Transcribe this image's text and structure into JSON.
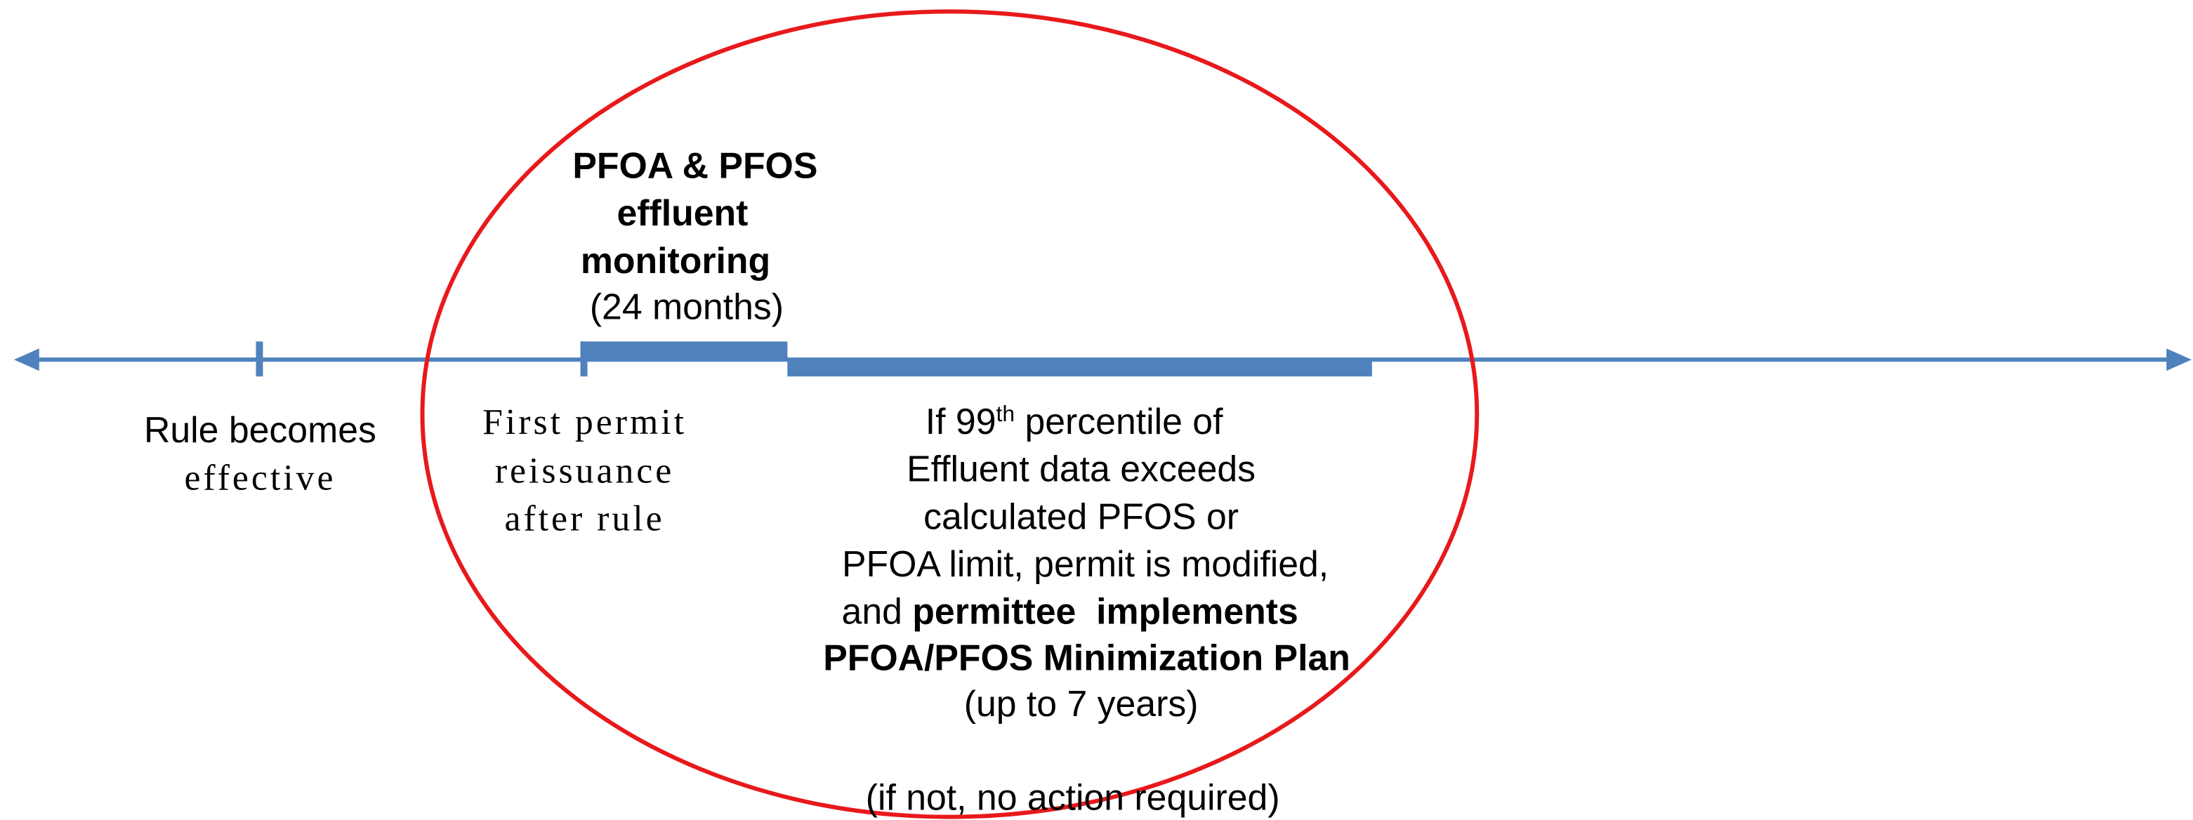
{
  "events": [
    {
      "label_lines": [
        "Rule becomes",
        "effective"
      ]
    },
    {
      "label_lines": [
        "First permit",
        "reissuance",
        "after rule"
      ]
    }
  ],
  "monitoring": {
    "title_lines": [
      "PFOA & PFOS",
      "effluent",
      "monitoring"
    ],
    "duration": "(24 months)"
  },
  "outcome": {
    "line1": {
      "before": "If 99",
      "sup": "th",
      "after": " percentile of"
    },
    "line2": "Effluent data exceeds",
    "line3": "calculated PFOS or",
    "line4": "PFOA limit, permit is modified,",
    "line5": {
      "before": "and ",
      "bold": "permittee  implements"
    },
    "line6": "PFOA/PFOS Minimization Plan",
    "line7": "(up to 7 years)",
    "note": "(if not, no action required)"
  }
}
